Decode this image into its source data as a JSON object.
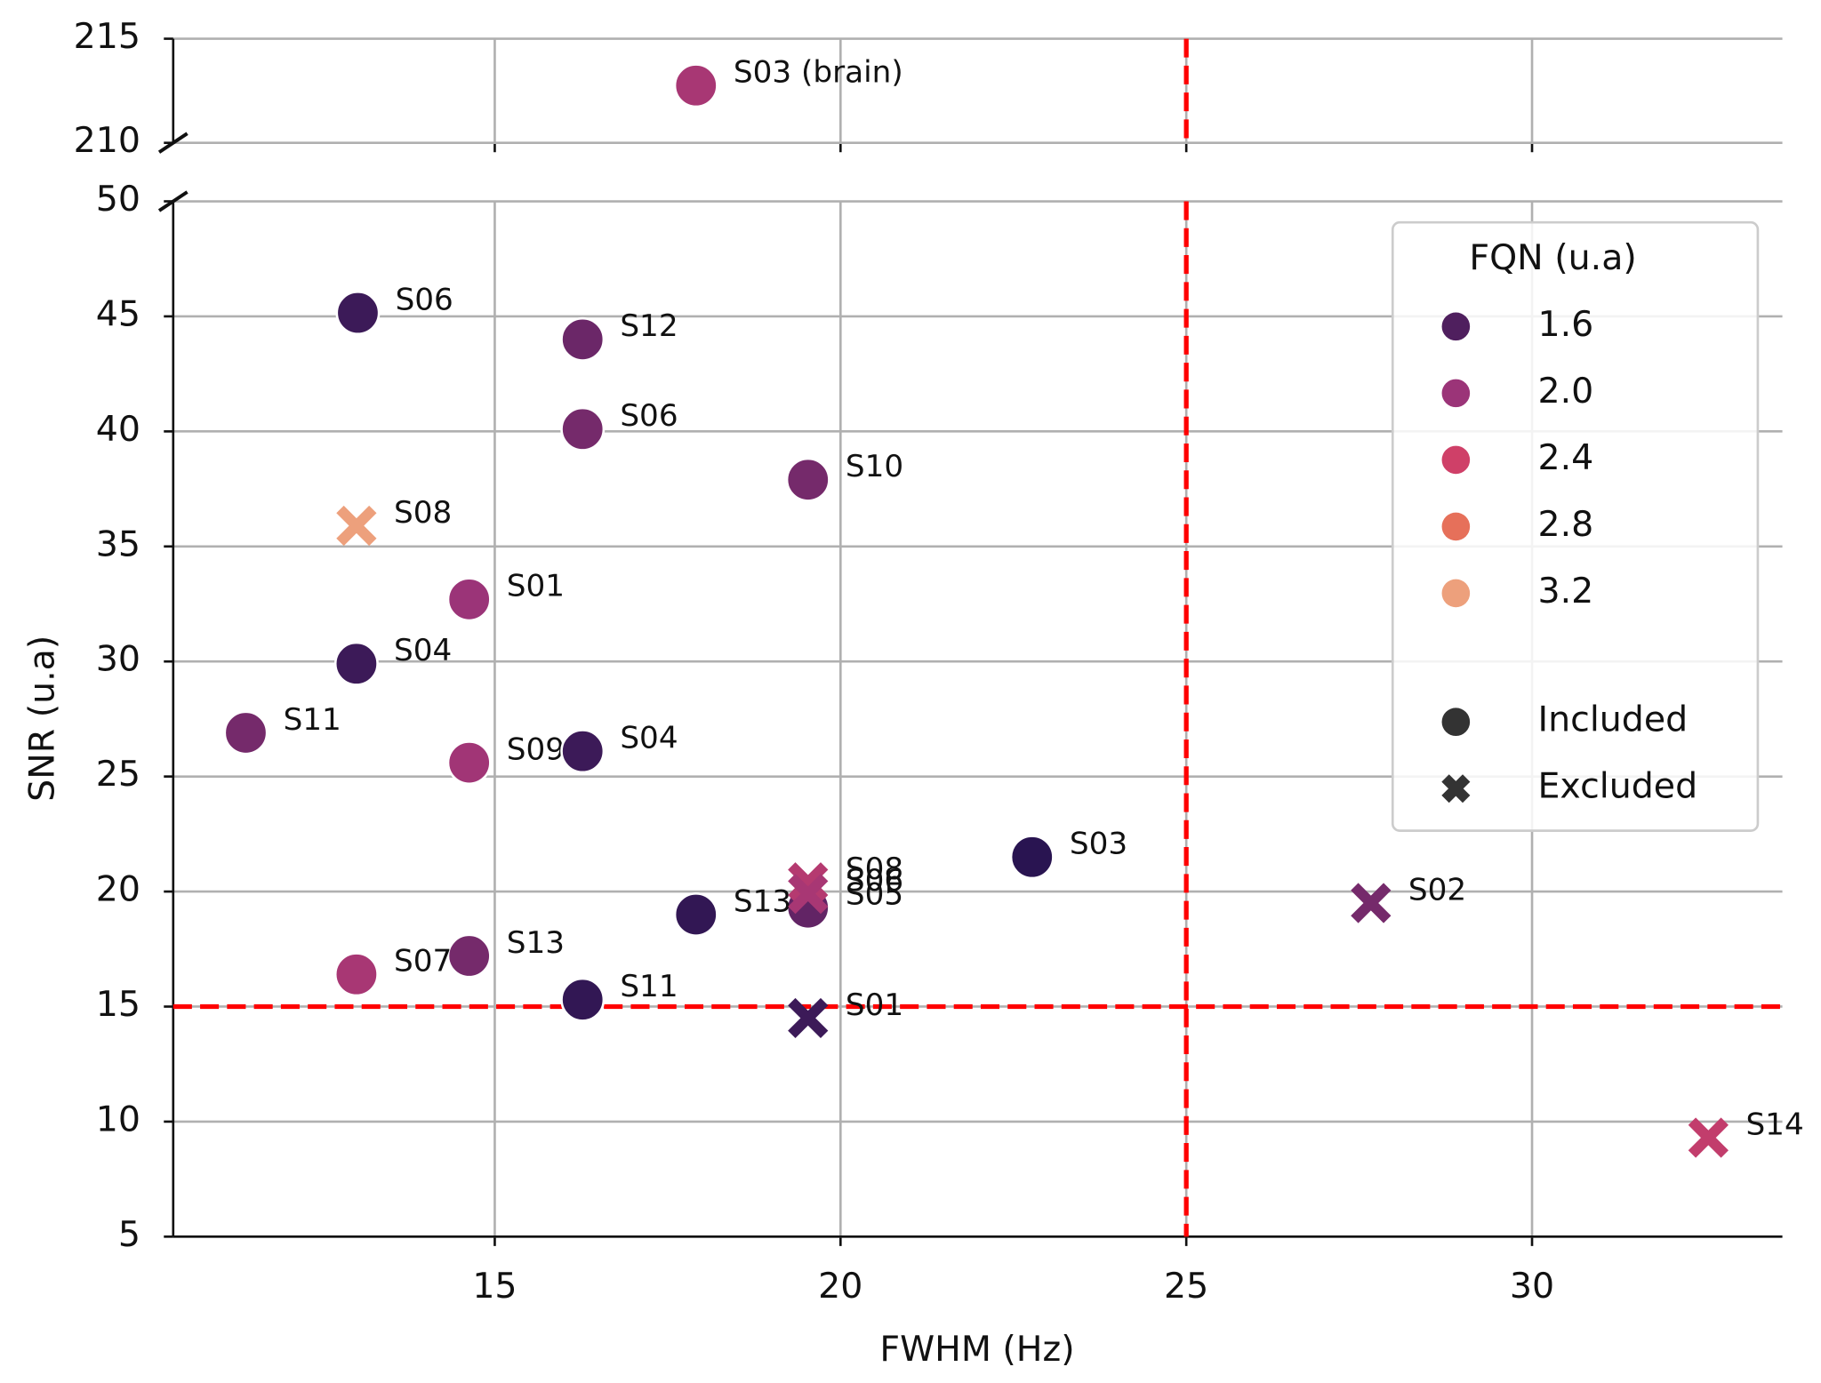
{
  "chart_data": {
    "type": "scatter",
    "xlabel": "FWHM (Hz)",
    "ylabel": "SNR (u.a)",
    "xlim": [
      10.35,
      33.62
    ],
    "xticks": [
      15,
      20,
      25,
      30
    ],
    "grid": true,
    "panels": [
      {
        "ylim": [
          210,
          215
        ],
        "yticks": [
          210,
          215
        ]
      },
      {
        "ylim": [
          5,
          50
        ],
        "yticks": [
          5,
          10,
          15,
          20,
          25,
          30,
          35,
          40,
          45,
          50
        ]
      }
    ],
    "reference_lines": {
      "x": 25,
      "y": 15,
      "color": "#ff0000"
    },
    "hue": {
      "title": "FQN (u.a)",
      "values": [
        1.6,
        {
          "value": 2,
          "label": "2.0"
        },
        2.4,
        2.8,
        3.2
      ],
      "colors": [
        "#4f1f5e",
        "#9b3478",
        "#cf4068",
        "#e6705a",
        "#eda07c"
      ]
    },
    "legend": "upper right",
    "series": [
      {
        "name": "Included",
        "marker": "circle",
        "color": "#333333",
        "x": [
          17.91,
          13.02,
          16.27,
          16.27,
          19.53,
          14.63,
          13.0,
          11.4,
          14.63,
          16.27,
          22.77,
          19.53,
          17.91,
          14.63,
          13.0,
          16.27
        ],
        "y": [
          212.75,
          45.15,
          44.0,
          40.1,
          37.9,
          32.7,
          29.9,
          26.9,
          25.6,
          26.1,
          21.5,
          19.3,
          19.0,
          17.2,
          16.4,
          15.3
        ],
        "fqn": [
          2.1,
          1.5,
          1.75,
          1.8,
          1.8,
          2.0,
          1.5,
          1.8,
          2.05,
          1.5,
          1.4,
          1.7,
          1.45,
          1.8,
          2.1,
          1.45
        ],
        "labels": [
          "S03 (brain)",
          "S06",
          "S12",
          "S06",
          "S10",
          "S01",
          "S04",
          "S11",
          "S09",
          "S04",
          "S03",
          "S05",
          "S13",
          "S13",
          "S07",
          "S11"
        ]
      },
      {
        "name": "Excluded",
        "marker": "x",
        "color": "#333333",
        "x": [
          13.0,
          19.53,
          19.53,
          27.67,
          19.53,
          32.55
        ],
        "y": [
          35.9,
          20.4,
          19.9,
          19.5,
          14.5,
          9.3
        ],
        "fqn": [
          3.2,
          2.2,
          2.1,
          1.8,
          1.5,
          2.3
        ],
        "labels": [
          "S08",
          "S08",
          "S06",
          "S02",
          "S01",
          "S14"
        ]
      }
    ]
  }
}
